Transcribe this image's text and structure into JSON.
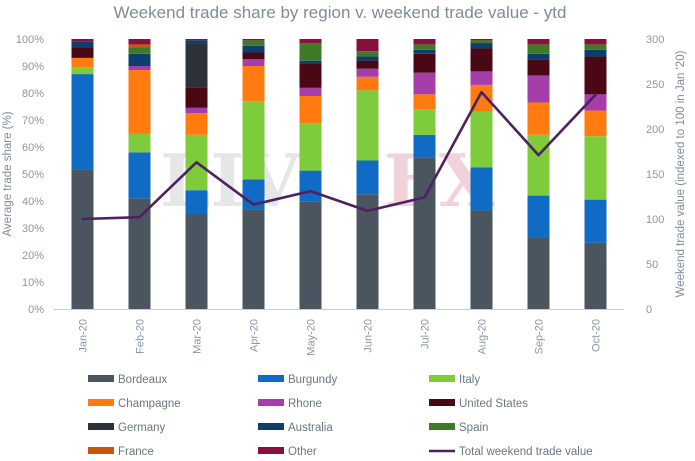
{
  "chart_data": {
    "type": "bar",
    "stacked": true,
    "title": "Weekend trade share by region v. weekend trade value - ytd",
    "ylabel": "Average trade share (%)",
    "y2label": "Weekend trade value (indexed to 100 in Jan '20)",
    "ylim": [
      0,
      100
    ],
    "y2lim": [
      0,
      300
    ],
    "yticks": [
      "0%",
      "10%",
      "20%",
      "30%",
      "40%",
      "50%",
      "60%",
      "70%",
      "80%",
      "90%",
      "100%"
    ],
    "y2ticks": [
      "0",
      "50",
      "100",
      "150",
      "200",
      "250",
      "300"
    ],
    "categories": [
      "Jan-20",
      "Feb-20",
      "Mar-20",
      "Apr-20",
      "May-20",
      "Jun-20",
      "Jul-20",
      "Aug-20",
      "Sep-20",
      "Oct-20"
    ],
    "grid": false,
    "legend_position": "bottom",
    "watermark": "LIV-EX",
    "series": [
      {
        "name": "Bordeaux",
        "color": "#4a5560",
        "values": [
          51.5,
          41,
          35,
          37,
          39.5,
          42.5,
          56,
          36.5,
          26.5,
          24.5
        ]
      },
      {
        "name": "Burgundy",
        "color": "#0f6bc4",
        "values": [
          35.5,
          17,
          9,
          11,
          11.5,
          12.5,
          8.5,
          16,
          15.5,
          16
        ]
      },
      {
        "name": "Italy",
        "color": "#7ecb3c",
        "values": [
          2.5,
          7,
          20.5,
          29,
          17.5,
          26,
          9.5,
          20.5,
          22.5,
          23.5
        ]
      },
      {
        "name": "Champagne",
        "color": "#ff7a0f",
        "values": [
          3.5,
          23.5,
          8,
          13,
          10,
          5,
          5.5,
          10,
          12,
          9.5
        ]
      },
      {
        "name": "Rhone",
        "color": "#a63ea9",
        "values": [
          0,
          1.5,
          2,
          2.5,
          3,
          3,
          8,
          5,
          10,
          6
        ]
      },
      {
        "name": "United States",
        "color": "#4a0815",
        "values": [
          4,
          0,
          7.5,
          2.5,
          9,
          3,
          7,
          8.5,
          6,
          14
        ]
      },
      {
        "name": "Germany",
        "color": "#2d3238",
        "values": [
          0,
          0,
          16.5,
          0,
          0,
          0,
          0,
          0,
          0,
          0
        ]
      },
      {
        "name": "Australia",
        "color": "#0d3f6e",
        "values": [
          2,
          4.5,
          1,
          2.5,
          1,
          1.5,
          1.5,
          2,
          2,
          2.5
        ]
      },
      {
        "name": "Spain",
        "color": "#3e7a28",
        "values": [
          0,
          2.5,
          0,
          2,
          6.5,
          2,
          2,
          1,
          3.5,
          2
        ]
      },
      {
        "name": "France",
        "color": "#c9560c",
        "values": [
          0,
          1,
          0,
          0,
          0,
          0,
          0,
          0,
          0,
          0
        ]
      },
      {
        "name": "Other",
        "color": "#8a0e3e",
        "values": [
          1,
          2,
          0.5,
          0.5,
          1.5,
          4.5,
          2,
          0.5,
          2,
          2
        ]
      }
    ],
    "line_series": {
      "name": "Total weekend trade value",
      "color": "#4e2160",
      "axis": "right",
      "values": [
        100,
        102,
        163,
        116,
        131,
        109,
        124,
        241,
        171,
        238
      ]
    }
  }
}
